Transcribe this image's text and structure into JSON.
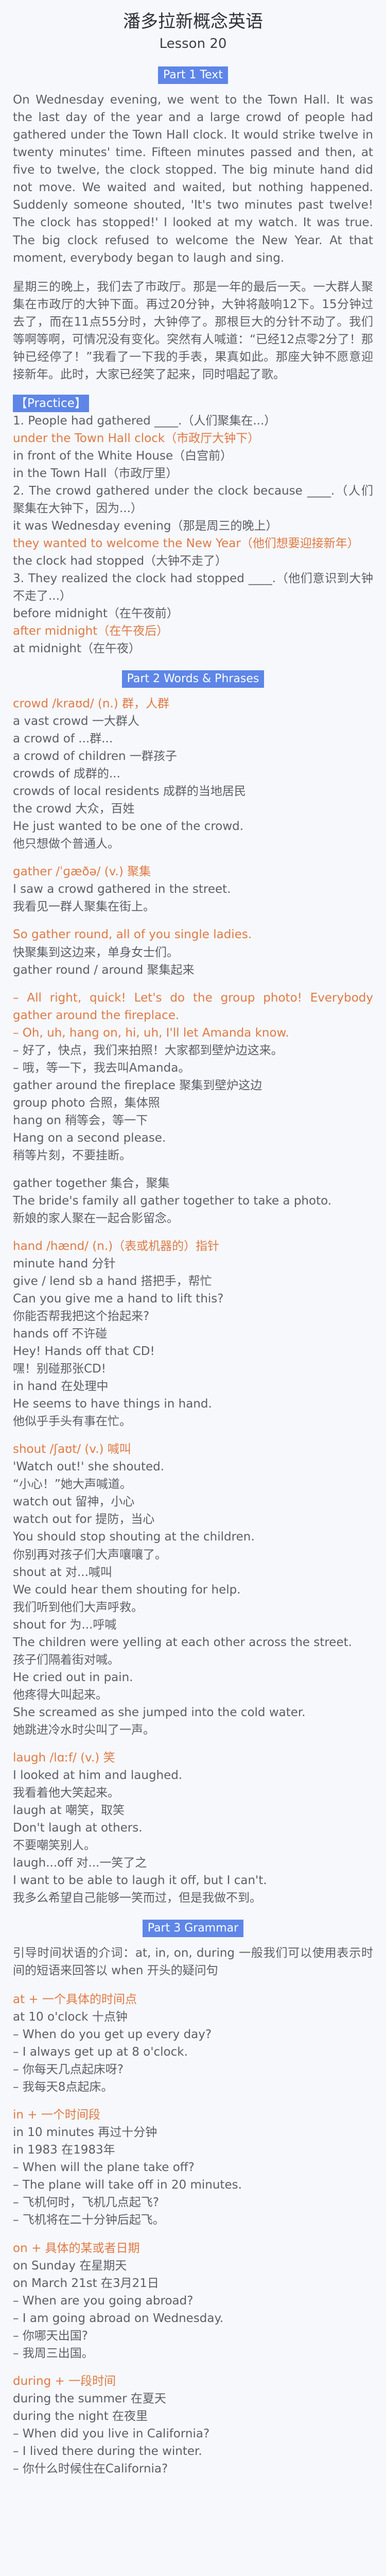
{
  "header": {
    "title": "潘多拉新概念英语",
    "lesson": "Lesson 20"
  },
  "part1": {
    "heading": "Part 1 Text",
    "passage_en": "On Wednesday evening, we went to the Town Hall. It was the last day of the year and a large crowd of people had gathered under the Town Hall clock. It would strike twelve in twenty minutes' time. Fifteen minutes passed and then, at five to twelve, the clock stopped. The big minute hand did not move. We waited and waited, but nothing happened. Suddenly someone shouted, 'It's two minutes past twelve! The clock has stopped!' I looked at my watch. It was true. The big clock refused to welcome the New Year. At that moment, everybody began to laugh and sing.",
    "passage_zh": "星期三的晚上，我们去了市政厅。那是一年的最后一天。一大群人聚集在市政厅的大钟下面。再过20分钟，大钟将敲响12下。15分钟过去了，而在11点55分时，大钟停了。那根巨大的分针不动了。我们等啊等啊，可情况没有变化。突然有人喊道：“已经12点零2分了！那钟已经停了！”我看了一下我的手表，果真如此。那座大钟不愿意迎接新年。此时，大家已经笑了起来，同时唱起了歌。",
    "practice_label": "【Practice】",
    "practice": [
      {
        "text": "1. People had gathered ____.（人们聚集在...）",
        "hl": false
      },
      {
        "text": "under the Town Hall clock（市政厅大钟下）",
        "hl": true
      },
      {
        "text": "in front of the White House（白宫前）",
        "hl": false
      },
      {
        "text": "in the Town Hall（市政厅里）",
        "hl": false
      },
      {
        "text": "2. The crowd gathered under the clock because ____.（人们聚集在大钟下，因为...）",
        "hl": false,
        "justify": true
      },
      {
        "text": "it was Wednesday evening（那是周三的晚上）",
        "hl": false
      },
      {
        "text": "they wanted to welcome the New Year（他们想要迎接新年）",
        "hl": true
      },
      {
        "text": "the clock had stopped（大钟不走了）",
        "hl": false
      },
      {
        "text": "3. They realized the clock had stopped ____.（他们意识到大钟不走了...）",
        "hl": false,
        "justify": true
      },
      {
        "text": "before midnight（在午夜前）",
        "hl": false
      },
      {
        "text": "after midnight（在午夜后）",
        "hl": true
      },
      {
        "text": "at midnight（在午夜）",
        "hl": false
      }
    ]
  },
  "part2": {
    "heading": "Part 2 Words & Phrases",
    "groups": [
      [
        {
          "text": "crowd /kraʊd/ (n.) 群，人群",
          "hl": true
        },
        {
          "text": "a vast crowd 一大群人"
        },
        {
          "text": "a crowd of ...群..."
        },
        {
          "text": "a crowd of children 一群孩子"
        },
        {
          "text": "crowds of 成群的..."
        },
        {
          "text": "crowds of local residents 成群的当地居民"
        },
        {
          "text": "the crowd 大众，百姓"
        },
        {
          "text": "He just wanted to be one of the crowd."
        },
        {
          "text": "他只想做个普通人。"
        }
      ],
      [
        {
          "text": "gather /ˈɡæðə/ (v.) 聚集",
          "hl": true
        },
        {
          "text": "I saw a crowd gathered in the street."
        },
        {
          "text": "我看见一群人聚集在街上。"
        }
      ],
      [
        {
          "text": "So gather round, all of you single ladies.",
          "hl": true
        },
        {
          "text": "快聚集到这边来，单身女士们。"
        },
        {
          "text": "gather round / around 聚集起来"
        }
      ],
      [
        {
          "text": "– All right, quick! Let's do the group photo! Everybody gather around the fireplace.",
          "hl": true,
          "justify": true
        },
        {
          "text": "– Oh, uh, hang on, hi, uh, I'll let Amanda know.",
          "hl": true
        },
        {
          "text": "– 好了，快点，我们来拍照！大家都到壁炉边这来。"
        },
        {
          "text": "– 哦，等一下，我去叫Amanda。"
        },
        {
          "text": "gather around the fireplace 聚集到壁炉这边"
        },
        {
          "text": "group photo 合照，集体照"
        },
        {
          "text": "hang on 稍等会，等一下"
        },
        {
          "text": "Hang on a second please."
        },
        {
          "text": "稍等片刻，不要挂断。"
        }
      ],
      [
        {
          "text": "gather together 集合，聚集"
        },
        {
          "text": "The bride's family all gather together to take a photo.",
          "justify": true
        },
        {
          "text": "新娘的家人聚在一起合影留念。"
        }
      ],
      [
        {
          "text": "hand /hænd/ (n.)（表或机器的）指针",
          "hl": true
        },
        {
          "text": "minute hand 分针"
        },
        {
          "text": "give / lend sb a hand 搭把手，帮忙"
        },
        {
          "text": "Can you give me a hand to lift this?"
        },
        {
          "text": "你能否帮我把这个抬起来?"
        },
        {
          "text": "hands off 不许碰"
        },
        {
          "text": "Hey! Hands off that CD!"
        },
        {
          "text": "嘿！别碰那张CD!"
        },
        {
          "text": "in hand 在处理中"
        },
        {
          "text": "He seems to have things in hand."
        },
        {
          "text": "他似乎手头有事在忙。"
        }
      ],
      [
        {
          "text": "shout /ʃaʊt/ (v.) 喊叫",
          "hl": true
        },
        {
          "text": "'Watch out!' she shouted."
        },
        {
          "text": "“小心！”她大声喊道。"
        },
        {
          "text": "watch out 留神，小心"
        },
        {
          "text": "watch out for 提防，当心"
        },
        {
          "text": "You should stop shouting at the children."
        },
        {
          "text": "你别再对孩子们大声嚷嚷了。"
        },
        {
          "text": "shout at 对...喊叫"
        },
        {
          "text": "We could hear them shouting for help."
        },
        {
          "text": "我们听到他们大声呼救。"
        },
        {
          "text": "shout for 为...呼喊"
        },
        {
          "text": "The children were yelling at each other across the street.",
          "justify": true
        },
        {
          "text": "孩子们隔着街对喊。"
        },
        {
          "text": "He cried out in pain."
        },
        {
          "text": "他疼得大叫起来。"
        },
        {
          "text": "She screamed as she jumped into the cold water.",
          "justify": true
        },
        {
          "text": "她跳进冷水时尖叫了一声。"
        }
      ],
      [
        {
          "text": "laugh /lɑːf/ (v.) 笑",
          "hl": true
        },
        {
          "text": "I looked at him and laughed."
        },
        {
          "text": "我看着他大笑起来。"
        },
        {
          "text": "laugh at 嘲笑，取笑"
        },
        {
          "text": "Don't laugh at others."
        },
        {
          "text": "不要嘲笑别人。"
        },
        {
          "text": "laugh...off 对...一笑了之"
        },
        {
          "text": "I want to be able to laugh it off, but I can't.",
          "justify": true
        },
        {
          "text": "我多么希望自己能够一笑而过，但是我做不到。"
        }
      ]
    ]
  },
  "part3": {
    "heading": "Part 3 Grammar",
    "intro": "引导时间状语的介词：at, in, on, during 一般我们可以使用表示时间的短语来回答以 when 开头的疑问句",
    "groups": [
      [
        {
          "text": "at + 一个具体的时间点",
          "hl": true
        },
        {
          "text": "at 10 o'clock 十点钟"
        },
        {
          "text": "– When do you get up every day?"
        },
        {
          "text": "– I always get up at 8 o'clock."
        },
        {
          "text": "– 你每天几点起床呀?"
        },
        {
          "text": "– 我每天8点起床。"
        }
      ],
      [
        {
          "text": "in + 一个时间段",
          "hl": true
        },
        {
          "text": "in 10 minutes 再过十分钟"
        },
        {
          "text": "in 1983 在1983年"
        },
        {
          "text": "– When will the plane take off?"
        },
        {
          "text": "– The plane will take off in 20 minutes."
        },
        {
          "text": "– 飞机何时，飞机几点起飞?"
        },
        {
          "text": "– 飞机将在二十分钟后起飞。"
        }
      ],
      [
        {
          "text": "on + 具体的某或者日期",
          "hl": true
        },
        {
          "text": "on Sunday 在星期天"
        },
        {
          "text": "on March 21st 在3月21日"
        },
        {
          "text": "– When are you going abroad?"
        },
        {
          "text": "– I am going abroad on Wednesday."
        },
        {
          "text": "– 你哪天出国?"
        },
        {
          "text": "– 我周三出国。"
        }
      ],
      [
        {
          "text": "during + 一段时间",
          "hl": true
        },
        {
          "text": "during the summer 在夏天"
        },
        {
          "text": "during the night 在夜里"
        },
        {
          "text": "– When did you live in California?"
        },
        {
          "text": "– I lived there during the winter."
        },
        {
          "text": "– 你什么时候住在California?"
        }
      ]
    ]
  }
}
